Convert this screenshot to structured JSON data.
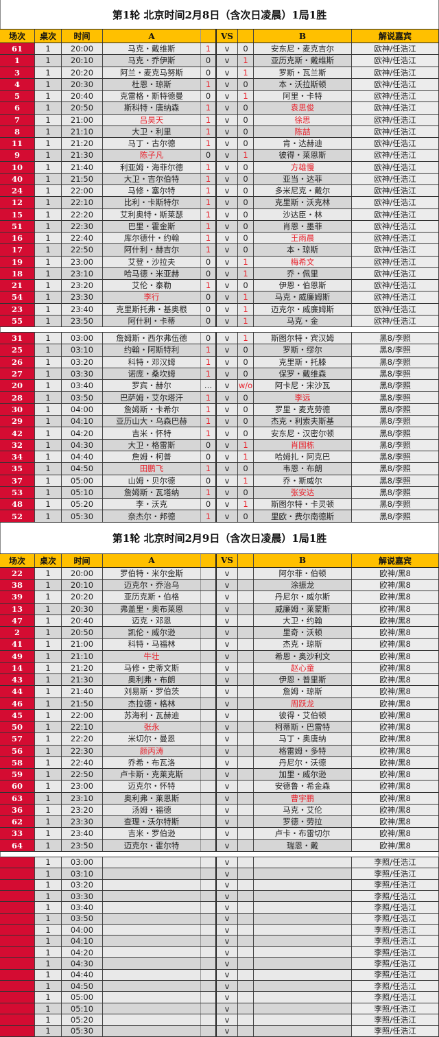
{
  "header": [
    "场次",
    "桌次",
    "时间",
    "A",
    "",
    "VS",
    "",
    "B",
    "解说嘉宾"
  ],
  "colors": {
    "match_cell": "#d40c32",
    "header": "#ffc000",
    "chinese_player": "#e8202a",
    "winner_score": "#e8202a"
  },
  "days": [
    {
      "title": "第1轮  北京时间2月8日（含次日凌晨）1局1胜",
      "blocks": [
        [
          [
            "61",
            "1",
            "20:00",
            "马克・戴维斯",
            "1",
            "v",
            "0",
            "安东尼・麦克吉尔",
            "欧神/任浩江",
            0,
            0
          ],
          [
            "1",
            "1",
            "20:10",
            "马克・乔伊斯",
            "0",
            "v",
            "1",
            "亚历克斯・戴维斯",
            "欧神/任浩江",
            0,
            0
          ],
          [
            "3",
            "1",
            "20:20",
            "阿兰・麦克马努斯",
            "0",
            "v",
            "1",
            "罗斯・瓦兰斯",
            "欧神/任浩江",
            0,
            0
          ],
          [
            "4",
            "1",
            "20:30",
            "杜恩・琼斯",
            "1",
            "v",
            "0",
            "本・沃拉斯顿",
            "欧神/任浩江",
            0,
            0
          ],
          [
            "5",
            "1",
            "20:40",
            "克雷格・斯特德曼",
            "0",
            "v",
            "1",
            "阿里・卡特",
            "欧神/任浩江",
            0,
            0
          ],
          [
            "6",
            "1",
            "20:50",
            "斯科特・唐纳森",
            "1",
            "v",
            "0",
            "袁思俊",
            "欧神/任浩江",
            0,
            1
          ],
          [
            "7",
            "1",
            "21:00",
            "吕昊天",
            "1",
            "v",
            "0",
            "徐思",
            "欧神/任浩江",
            1,
            1
          ],
          [
            "8",
            "1",
            "21:10",
            "大卫・利里",
            "1",
            "v",
            "0",
            "陈喆",
            "欧神/任浩江",
            0,
            1
          ],
          [
            "11",
            "1",
            "21:20",
            "马丁・古尔德",
            "1",
            "v",
            "0",
            "肯・达赫迪",
            "欧神/任浩江",
            0,
            0
          ],
          [
            "9",
            "1",
            "21:30",
            "陈子凡",
            "0",
            "v",
            "1",
            "彼得・莱恩斯",
            "欧神/任浩江",
            1,
            0
          ],
          [
            "10",
            "1",
            "21:40",
            "利亚姆・海菲尔德",
            "1",
            "v",
            "0",
            "方雄慢",
            "欧神/任浩江",
            0,
            1
          ],
          [
            "40",
            "1",
            "21:50",
            "大卫・吉尔伯特",
            "1",
            "v",
            "0",
            "亚当・达菲",
            "欧神/任浩江",
            0,
            0
          ],
          [
            "24",
            "1",
            "22:00",
            "马修・塞尔特",
            "1",
            "v",
            "0",
            "多米尼克・戴尔",
            "欧神/任浩江",
            0,
            0
          ],
          [
            "12",
            "1",
            "22:10",
            "比利・卡斯特尔",
            "1",
            "v",
            "0",
            "克里斯・沃克林",
            "欧神/任浩江",
            0,
            0
          ],
          [
            "15",
            "1",
            "22:20",
            "艾利奥特・斯莱瑟",
            "1",
            "v",
            "0",
            "沙达臣・林",
            "欧神/任浩江",
            0,
            0
          ],
          [
            "51",
            "1",
            "22:30",
            "巴里・霍金斯",
            "1",
            "v",
            "0",
            "肖恩・墨菲",
            "欧神/任浩江",
            0,
            0
          ],
          [
            "16",
            "1",
            "22:40",
            "库尔德什・约翰",
            "1",
            "v",
            "0",
            "王雨晨",
            "欧神/任浩江",
            0,
            1
          ],
          [
            "17",
            "1",
            "22:50",
            "阿什利・赫吉尔",
            "1",
            "v",
            "0",
            "本・琼斯",
            "欧神/任浩江",
            0,
            0
          ],
          [
            "19",
            "1",
            "23:00",
            "艾登・沙拉夫",
            "0",
            "v",
            "1",
            "梅希文",
            "欧神/任浩江",
            0,
            1
          ],
          [
            "18",
            "1",
            "23:10",
            "哈马德・米亚赫",
            "0",
            "v",
            "1",
            "乔・佩里",
            "欧神/任浩江",
            0,
            0
          ],
          [
            "21",
            "1",
            "23:20",
            "艾伦・泰勒",
            "1",
            "v",
            "0",
            "伊恩・伯恩斯",
            "欧神/任浩江",
            0,
            0
          ],
          [
            "54",
            "1",
            "23:30",
            "李行",
            "0",
            "v",
            "1",
            "马克・威廉姆斯",
            "欧神/任浩江",
            1,
            0
          ],
          [
            "23",
            "1",
            "23:40",
            "克里斯托弗・基奥根",
            "0",
            "v",
            "1",
            "迈克尔・威廉姆斯",
            "欧神/任浩江",
            0,
            0
          ],
          [
            "55",
            "1",
            "23:50",
            "阿什利・卡蒂",
            "0",
            "v",
            "1",
            "马克・金",
            "欧神/任浩江",
            0,
            0
          ]
        ],
        [
          [
            "31",
            "1",
            "03:00",
            "詹姆斯・西尔弗伍德",
            "0",
            "v",
            "1",
            "斯图尔特・宾汉姆",
            "黑8/李照",
            0,
            0
          ],
          [
            "25",
            "1",
            "03:10",
            "约翰・阿斯特利",
            "1",
            "v",
            "0",
            "罗斯・缪尔",
            "黑8/李照",
            0,
            0
          ],
          [
            "26",
            "1",
            "03:20",
            "科特・邓汉姆",
            "1",
            "v",
            "0",
            "克里斯・托滕",
            "黑8/李照",
            0,
            0
          ],
          [
            "27",
            "1",
            "03:30",
            "诺庞・桑坎姆",
            "1",
            "v",
            "0",
            "保罗・戴维森",
            "黑8/李照",
            0,
            0
          ],
          [
            "20",
            "1",
            "03:40",
            "罗宾・赫尔",
            "…",
            "v",
            "w/o",
            "阿卡尼・宋沙瓦",
            "黑8/李照",
            0,
            0
          ],
          [
            "28",
            "1",
            "03:50",
            "巴萨姆・艾尔塔汗",
            "1",
            "v",
            "0",
            "李远",
            "黑8/李照",
            0,
            1
          ],
          [
            "30",
            "1",
            "04:00",
            "詹姆斯・卡希尔",
            "1",
            "v",
            "0",
            "罗里・麦克劳德",
            "黑8/李照",
            0,
            0
          ],
          [
            "29",
            "1",
            "04:10",
            "亚历山大・乌森巴赫",
            "1",
            "v",
            "0",
            "杰克・利索夫斯基",
            "黑8/李照",
            0,
            0
          ],
          [
            "42",
            "1",
            "04:20",
            "吉米・怀特",
            "1",
            "v",
            "0",
            "安东尼・汉密尔顿",
            "黑8/李照",
            0,
            0
          ],
          [
            "32",
            "1",
            "04:30",
            "大卫・格雷斯",
            "0",
            "v",
            "1",
            "肖国栋",
            "黑8/李照",
            0,
            1
          ],
          [
            "34",
            "1",
            "04:40",
            "詹姆・柯普",
            "0",
            "v",
            "1",
            "哈姆扎・阿克巴",
            "黑8/李照",
            0,
            0
          ],
          [
            "35",
            "1",
            "04:50",
            "田鹏飞",
            "1",
            "v",
            "0",
            "韦恩・布朗",
            "黑8/李照",
            1,
            0
          ],
          [
            "37",
            "1",
            "05:00",
            "山姆・贝尔德",
            "0",
            "v",
            "1",
            "乔・斯威尔",
            "黑8/李照",
            0,
            0
          ],
          [
            "53",
            "1",
            "05:10",
            "詹姆斯・瓦塔纳",
            "1",
            "v",
            "0",
            "张安达",
            "黑8/李照",
            0,
            1
          ],
          [
            "48",
            "1",
            "05:20",
            "李・沃克",
            "0",
            "v",
            "1",
            "斯图尔特・卡灵顿",
            "黑8/李照",
            0,
            0
          ],
          [
            "52",
            "1",
            "05:30",
            "奈杰尔・邦德",
            "1",
            "v",
            "0",
            "里欧・费尔南德斯",
            "黑8/李照",
            0,
            0
          ]
        ]
      ]
    },
    {
      "title": "第1轮  北京时间2月9日（含次日凌晨）1局1胜",
      "blocks": [
        [
          [
            "22",
            "1",
            "20:00",
            "罗伯特・米尔金斯",
            "",
            "v",
            "",
            "阿尔菲・伯顿",
            "欧神/黑8",
            0,
            0
          ],
          [
            "38",
            "1",
            "20:10",
            "迈克尔・乔治乌",
            "",
            "v",
            "",
            "涂振龙",
            "欧神/黑8",
            0,
            0
          ],
          [
            "39",
            "1",
            "20:20",
            "亚历克斯・伯格",
            "",
            "v",
            "",
            "丹尼尔・威尔斯",
            "欧神/黑8",
            0,
            0
          ],
          [
            "13",
            "1",
            "20:30",
            "弗盖里・奥布莱恩",
            "",
            "v",
            "",
            "威廉姆・莱蒙斯",
            "欧神/黑8",
            0,
            0
          ],
          [
            "47",
            "1",
            "20:40",
            "迈克・邓恩",
            "",
            "v",
            "",
            "大卫・约翰",
            "欧神/黑8",
            0,
            0
          ],
          [
            "2",
            "1",
            "20:50",
            "凯伦・威尔逊",
            "",
            "v",
            "",
            "里奇・沃顿",
            "欧神/黑8",
            0,
            0
          ],
          [
            "41",
            "1",
            "21:00",
            "科特・马福林",
            "",
            "v",
            "",
            "杰克・琼斯",
            "欧神/黑8",
            0,
            0
          ],
          [
            "49",
            "1",
            "21:10",
            "牛壮",
            "",
            "v",
            "",
            "希恩・奥沙利文",
            "欧神/黑8",
            1,
            0
          ],
          [
            "14",
            "1",
            "21:20",
            "马修・史蒂文斯",
            "",
            "v",
            "",
            "赵心童",
            "欧神/黑8",
            0,
            1
          ],
          [
            "43",
            "1",
            "21:30",
            "奥利弗・布朗",
            "",
            "v",
            "",
            "伊恩・普里斯",
            "欧神/黑8",
            0,
            0
          ],
          [
            "44",
            "1",
            "21:40",
            "刘易斯・罗伯茨",
            "",
            "v",
            "",
            "詹姆・琼斯",
            "欧神/黑8",
            0,
            0
          ],
          [
            "46",
            "1",
            "21:50",
            "杰拉德・格林",
            "",
            "v",
            "",
            "周跃龙",
            "欧神/黑8",
            0,
            1
          ],
          [
            "45",
            "1",
            "22:00",
            "苏海利・瓦赫迪",
            "",
            "v",
            "",
            "彼得・艾伯顿",
            "欧神/黑8",
            0,
            0
          ],
          [
            "50",
            "1",
            "22:10",
            "张永",
            "",
            "v",
            "",
            "柯蒂斯・巴雷特",
            "欧神/黑8",
            1,
            0
          ],
          [
            "57",
            "1",
            "22:20",
            "米切尔・曼恩",
            "",
            "v",
            "",
            "马丁・奥唐纳",
            "欧神/黑8",
            0,
            0
          ],
          [
            "56",
            "1",
            "22:30",
            "颜丙涛",
            "",
            "v",
            "",
            "格雷姆・多特",
            "欧神/黑8",
            1,
            0
          ],
          [
            "58",
            "1",
            "22:40",
            "乔希・布瓦洛",
            "",
            "v",
            "",
            "丹尼尔・沃德",
            "欧神/黑8",
            0,
            0
          ],
          [
            "59",
            "1",
            "22:50",
            "卢卡斯・克莱克斯",
            "",
            "v",
            "",
            "加里・威尔逊",
            "欧神/黑8",
            0,
            0
          ],
          [
            "60",
            "1",
            "23:00",
            "迈克尔・怀特",
            "",
            "v",
            "",
            "安德鲁・希金森",
            "欧神/黑8",
            0,
            0
          ],
          [
            "63",
            "1",
            "23:10",
            "奥利弗・莱恩斯",
            "",
            "v",
            "",
            "曹宇鹏",
            "欧神/黑8",
            0,
            1
          ],
          [
            "36",
            "1",
            "23:20",
            "汤姆・福德",
            "",
            "v",
            "",
            "马克・艾伦",
            "欧神/黑8",
            0,
            0
          ],
          [
            "62",
            "1",
            "23:30",
            "查理・沃尔特斯",
            "",
            "v",
            "",
            "罗德・劳拉",
            "欧神/黑8",
            0,
            0
          ],
          [
            "33",
            "1",
            "23:40",
            "吉米・罗伯逊",
            "",
            "v",
            "",
            "卢卡・布雷切尔",
            "欧神/黑8",
            0,
            0
          ],
          [
            "64",
            "1",
            "23:50",
            "迈克尔・霍尔特",
            "",
            "v",
            "",
            "瑞恩・戴",
            "欧神/黑8",
            0,
            0
          ]
        ],
        [
          [
            "",
            "1",
            "03:00",
            "",
            "",
            "v",
            "",
            "",
            "李照/任浩江",
            0,
            0
          ],
          [
            "",
            "1",
            "03:10",
            "",
            "",
            "v",
            "",
            "",
            "李照/任浩江",
            0,
            0
          ],
          [
            "",
            "1",
            "03:20",
            "",
            "",
            "v",
            "",
            "",
            "李照/任浩江",
            0,
            0
          ],
          [
            "",
            "1",
            "03:30",
            "",
            "",
            "v",
            "",
            "",
            "李照/任浩江",
            0,
            0
          ],
          [
            "",
            "1",
            "03:40",
            "",
            "",
            "v",
            "",
            "",
            "李照/任浩江",
            0,
            0
          ],
          [
            "",
            "1",
            "03:50",
            "",
            "",
            "v",
            "",
            "",
            "李照/任浩江",
            0,
            0
          ],
          [
            "",
            "1",
            "04:00",
            "",
            "",
            "v",
            "",
            "",
            "李照/任浩江",
            0,
            0
          ],
          [
            "",
            "1",
            "04:10",
            "",
            "",
            "v",
            "",
            "",
            "李照/任浩江",
            0,
            0
          ],
          [
            "",
            "1",
            "04:20",
            "",
            "",
            "v",
            "",
            "",
            "李照/任浩江",
            0,
            0
          ],
          [
            "",
            "1",
            "04:30",
            "",
            "",
            "v",
            "",
            "",
            "李照/任浩江",
            0,
            0
          ],
          [
            "",
            "1",
            "04:40",
            "",
            "",
            "v",
            "",
            "",
            "李照/任浩江",
            0,
            0
          ],
          [
            "",
            "1",
            "04:50",
            "",
            "",
            "v",
            "",
            "",
            "李照/任浩江",
            0,
            0
          ],
          [
            "",
            "1",
            "05:00",
            "",
            "",
            "v",
            "",
            "",
            "李照/任浩江",
            0,
            0
          ],
          [
            "",
            "1",
            "05:10",
            "",
            "",
            "v",
            "",
            "",
            "李照/任浩江",
            0,
            0
          ],
          [
            "",
            "1",
            "05:20",
            "",
            "",
            "v",
            "",
            "",
            "李照/任浩江",
            0,
            0
          ],
          [
            "",
            "1",
            "05:30",
            "",
            "",
            "v",
            "",
            "",
            "李照/任浩江",
            0,
            0
          ]
        ]
      ]
    }
  ]
}
